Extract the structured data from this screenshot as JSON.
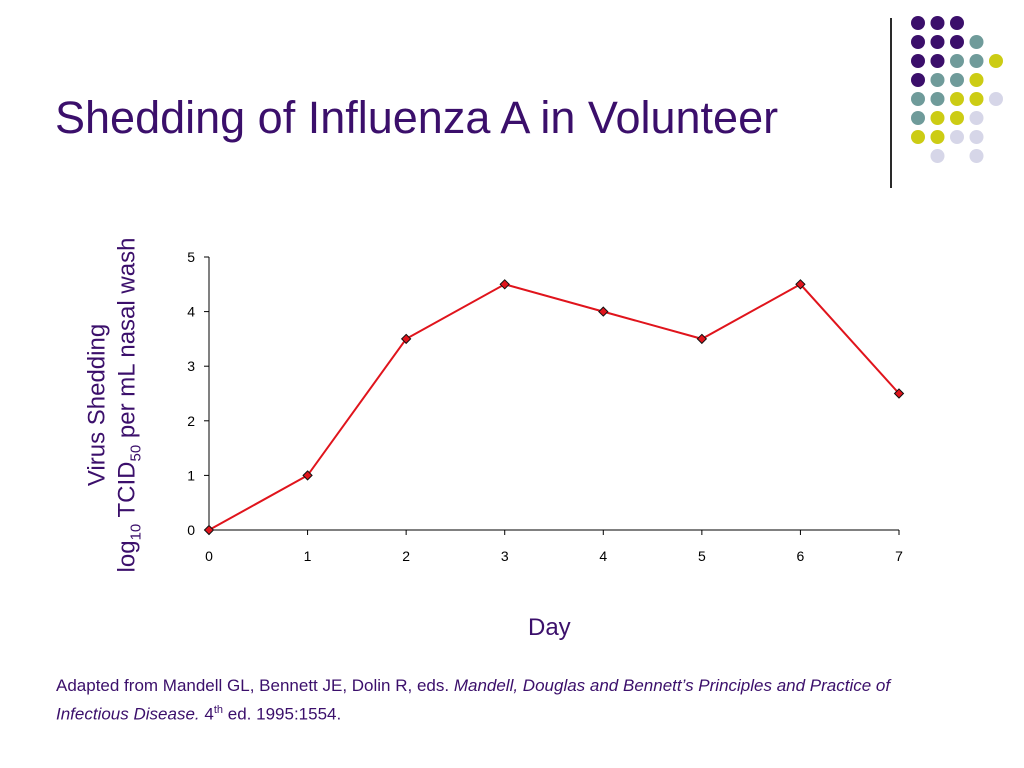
{
  "slide": {
    "title": "Shedding of Influenza A in Volunteer",
    "decor_colors": {
      "purple": "#3b0f6b",
      "teal": "#6f9b9a",
      "yellow": "#cccc14",
      "lavender": "#d6d6e8"
    }
  },
  "chart_data": {
    "type": "line",
    "x": [
      0,
      1,
      2,
      3,
      4,
      5,
      6,
      7
    ],
    "series": [
      {
        "values": [
          0,
          1,
          3.5,
          4.5,
          4,
          3.5,
          4.5,
          2.5
        ],
        "color": "#e0141c"
      }
    ],
    "xticks": [
      "0",
      "1",
      "2",
      "3",
      "4",
      "5",
      "6",
      "7"
    ],
    "yticks": [
      "0",
      "1",
      "2",
      "3",
      "4",
      "5"
    ],
    "xlim": [
      0,
      7
    ],
    "ylim": [
      0,
      5
    ],
    "xlabel": "Day",
    "ylabel": {
      "line1": "Virus Shedding",
      "log": "log",
      "log_sub": "10",
      "tcid": "TCID",
      "tcid_sub": "50",
      "rest": "per mL nasal wash"
    },
    "grid": false,
    "legend": "none"
  },
  "citation": {
    "plain": "Adapted from Mandell GL, Bennett JE, Dolin R, eds.",
    "italic": "Mandell, Douglas and Bennett’s Principles and Practice of Infectious Disease.",
    "edition_num": "4",
    "edition_sup": "th",
    "rest": "ed. 1995:1554."
  }
}
